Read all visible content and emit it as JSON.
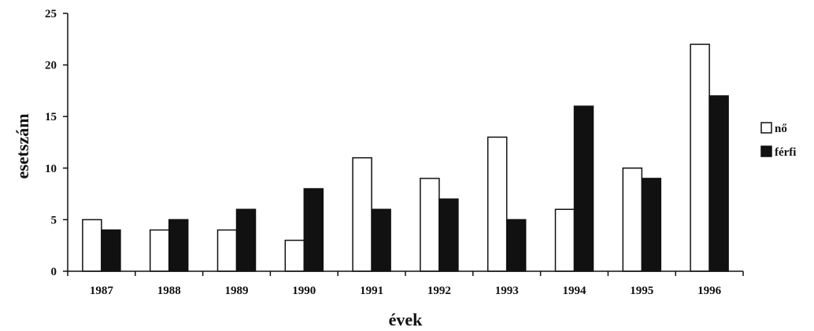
{
  "chart_data": {
    "type": "bar",
    "categories": [
      "1987",
      "1988",
      "1989",
      "1990",
      "1991",
      "1992",
      "1993",
      "1994",
      "1995",
      "1996"
    ],
    "series": [
      {
        "name": "nő",
        "values": [
          5,
          4,
          4,
          3,
          11,
          9,
          13,
          6,
          10,
          22
        ],
        "color": "#ffffff"
      },
      {
        "name": "férfi",
        "values": [
          4,
          5,
          6,
          8,
          6,
          7,
          5,
          16,
          9,
          17
        ],
        "color": "#111111"
      }
    ],
    "yticks": [
      "0",
      "5",
      "10",
      "15",
      "20",
      "25"
    ],
    "ylim": [
      0,
      25
    ],
    "xlabel": "évek",
    "ylabel": "esetszám",
    "grid": false,
    "legend_position": "right"
  }
}
